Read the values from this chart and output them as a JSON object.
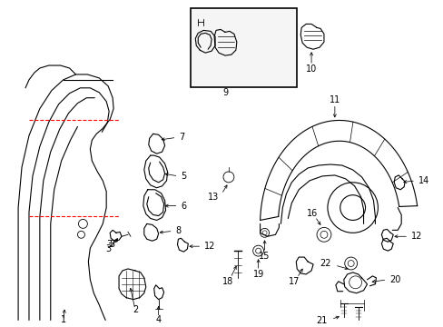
{
  "background_color": "#ffffff",
  "fig_width": 4.89,
  "fig_height": 3.6,
  "dpi": 100,
  "line_color": "#000000",
  "font_size": 7.0,
  "red_color": "#ff0000"
}
